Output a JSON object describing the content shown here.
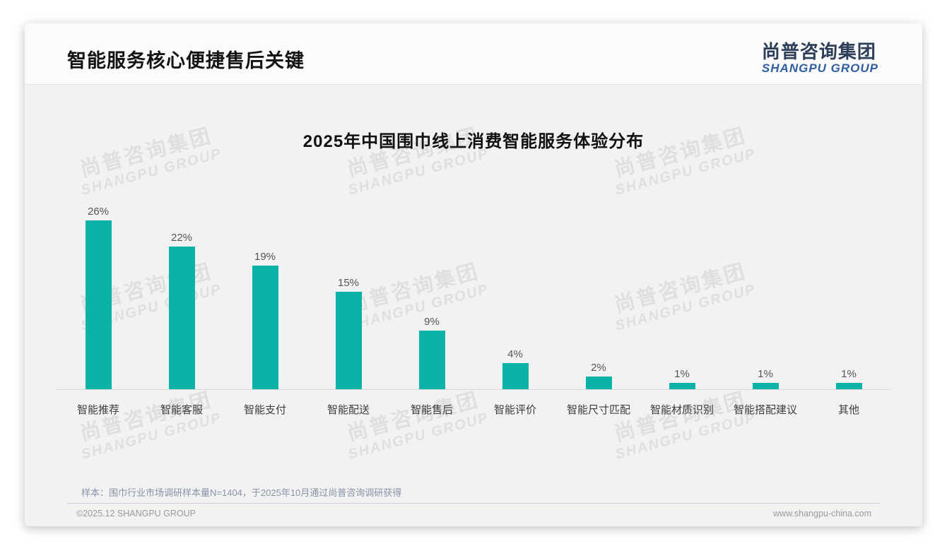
{
  "header": {
    "title": "智能服务核心便捷售后关键",
    "logo_cn": "尚普咨询集团",
    "logo_en": "SHANGPU GROUP"
  },
  "watermark": {
    "cn": "尚普咨询集团",
    "en": "SHANGPU GROUP"
  },
  "footnote": "样本：围巾行业市场调研样本量N=1404，于2025年10月通过尚普咨询调研获得",
  "footer": {
    "left": "©2025.12 SHANGPU GROUP",
    "right": "www.shangpu-china.com"
  },
  "colors": {
    "bar": "#0bb2a8",
    "logo_cn": "#2d3e59",
    "logo_en": "#2f5fa0",
    "card_bg": "#f2f2f2",
    "axis_line": "#d8d8d8"
  },
  "chart_data": {
    "type": "bar",
    "title": "2025年中国围巾线上消费智能服务体验分布",
    "categories": [
      "智能推荐",
      "智能客服",
      "智能支付",
      "智能配送",
      "智能售后",
      "智能评价",
      "智能尺寸匹配",
      "智能材质识别",
      "智能搭配建议",
      "其他"
    ],
    "values": [
      26,
      22,
      19,
      15,
      9,
      4,
      2,
      1,
      1,
      1
    ],
    "unit": "%",
    "xlabel": "",
    "ylabel": "",
    "ylim": [
      0,
      28
    ],
    "grid": false,
    "legend": false,
    "data_labels": true,
    "bar_color": "#0bb2a8"
  }
}
